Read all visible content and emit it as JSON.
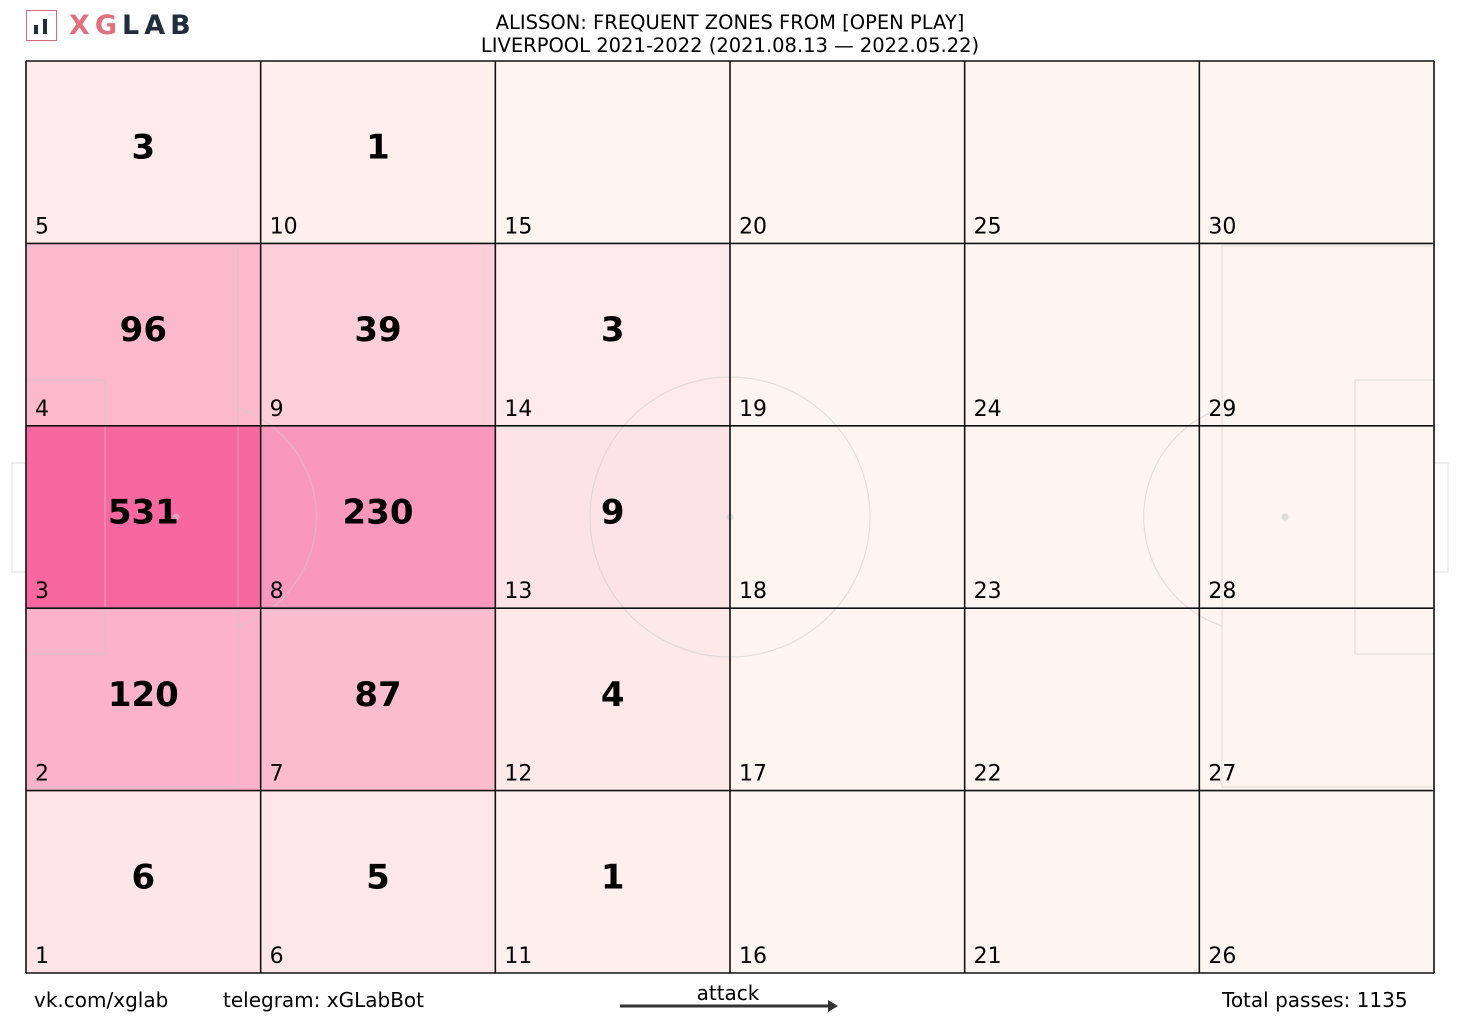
{
  "logo": {
    "text_xg": "XG",
    "text_lab": "LAB",
    "icon": "bar-chart-logo-icon"
  },
  "title": {
    "line1": "ALISSON: FREQUENT ZONES FROM [OPEN PLAY]",
    "line2": "LIVERPOOL 2021-2022 (2021.08.13 — 2022.05.22)"
  },
  "footer": {
    "vk": "vk.com/xglab",
    "telegram": "telegram: xGLabBot",
    "attack": "attack",
    "total": "Total passes: 1135"
  },
  "colors": {
    "low": "#fff5f0",
    "high": "#f768a1",
    "grid": "#111111",
    "pitch_lines": "#cccccc",
    "logo_accent": "#e0727f",
    "logo_dark": "#1f2d3d"
  },
  "chart_data": {
    "type": "heatmap",
    "title": "ALISSON: FREQUENT ZONES FROM [OPEN PLAY]",
    "subtitle": "LIVERPOOL 2021-2022 (2021.08.13 — 2022.05.22)",
    "columns": 6,
    "rows": 5,
    "zones": [
      {
        "zone": 1,
        "value": 6
      },
      {
        "zone": 2,
        "value": 120
      },
      {
        "zone": 3,
        "value": 531
      },
      {
        "zone": 4,
        "value": 96
      },
      {
        "zone": 5,
        "value": 3
      },
      {
        "zone": 6,
        "value": 5
      },
      {
        "zone": 7,
        "value": 87
      },
      {
        "zone": 8,
        "value": 230
      },
      {
        "zone": 9,
        "value": 39
      },
      {
        "zone": 10,
        "value": 1
      },
      {
        "zone": 11,
        "value": 1
      },
      {
        "zone": 12,
        "value": 4
      },
      {
        "zone": 13,
        "value": 9
      },
      {
        "zone": 14,
        "value": 3
      },
      {
        "zone": 15,
        "value": null
      },
      {
        "zone": 16,
        "value": null
      },
      {
        "zone": 17,
        "value": null
      },
      {
        "zone": 18,
        "value": null
      },
      {
        "zone": 19,
        "value": null
      },
      {
        "zone": 20,
        "value": null
      },
      {
        "zone": 21,
        "value": null
      },
      {
        "zone": 22,
        "value": null
      },
      {
        "zone": 23,
        "value": null
      },
      {
        "zone": 24,
        "value": null
      },
      {
        "zone": 25,
        "value": null
      },
      {
        "zone": 26,
        "value": null
      },
      {
        "zone": 27,
        "value": null
      },
      {
        "zone": 28,
        "value": null
      },
      {
        "zone": 29,
        "value": null
      },
      {
        "zone": 30,
        "value": null
      }
    ],
    "max_value": 531,
    "direction": "attack left-to-right",
    "total_passes": 1135
  }
}
